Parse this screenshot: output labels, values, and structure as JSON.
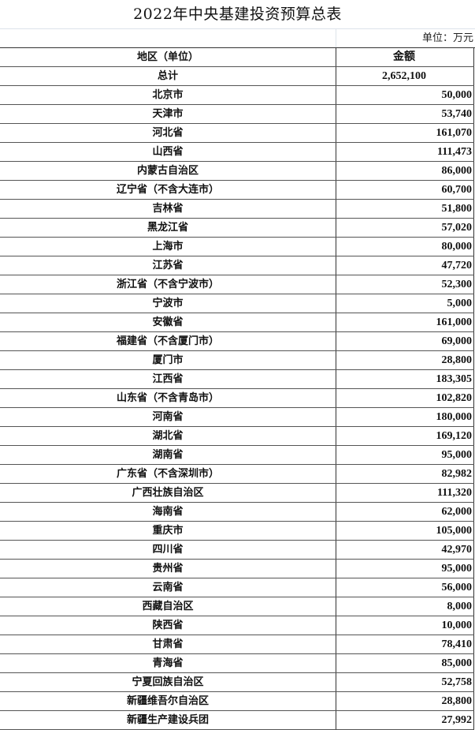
{
  "title": "2022年中央基建投资预算总表",
  "unit": "单位：万元",
  "header": {
    "region": "地区（单位）",
    "amount": "金额"
  },
  "total": {
    "label": "总计",
    "amount": "2,652,100"
  },
  "rows": [
    {
      "region": "北京市",
      "amount": "50,000"
    },
    {
      "region": "天津市",
      "amount": "53,740"
    },
    {
      "region": "河北省",
      "amount": "161,070"
    },
    {
      "region": "山西省",
      "amount": "111,473"
    },
    {
      "region": "内蒙古自治区",
      "amount": "86,000"
    },
    {
      "region": "辽宁省（不含大连市）",
      "amount": "60,700"
    },
    {
      "region": "吉林省",
      "amount": "51,800"
    },
    {
      "region": "黑龙江省",
      "amount": "57,020"
    },
    {
      "region": "上海市",
      "amount": "80,000"
    },
    {
      "region": "江苏省",
      "amount": "47,720"
    },
    {
      "region": "浙江省（不含宁波市）",
      "amount": "52,300"
    },
    {
      "region": "宁波市",
      "amount": "5,000"
    },
    {
      "region": "安徽省",
      "amount": "161,000"
    },
    {
      "region": "福建省（不含厦门市）",
      "amount": "69,000"
    },
    {
      "region": "厦门市",
      "amount": "28,800"
    },
    {
      "region": "江西省",
      "amount": "183,305"
    },
    {
      "region": "山东省（不含青岛市）",
      "amount": "102,820"
    },
    {
      "region": "河南省",
      "amount": "180,000"
    },
    {
      "region": "湖北省",
      "amount": "169,120"
    },
    {
      "region": "湖南省",
      "amount": "95,000"
    },
    {
      "region": "广东省（不含深圳市）",
      "amount": "82,982"
    },
    {
      "region": "广西壮族自治区",
      "amount": "111,320"
    },
    {
      "region": "海南省",
      "amount": "62,000"
    },
    {
      "region": "重庆市",
      "amount": "105,000"
    },
    {
      "region": "四川省",
      "amount": "42,970"
    },
    {
      "region": "贵州省",
      "amount": "95,000"
    },
    {
      "region": "云南省",
      "amount": "56,000"
    },
    {
      "region": "西藏自治区",
      "amount": "8,000"
    },
    {
      "region": "陕西省",
      "amount": "10,000"
    },
    {
      "region": "甘肃省",
      "amount": "78,410"
    },
    {
      "region": "青海省",
      "amount": "85,000"
    },
    {
      "region": "宁夏回族自治区",
      "amount": "52,758"
    },
    {
      "region": "新疆维吾尔自治区",
      "amount": "28,800"
    },
    {
      "region": "新疆生产建设兵团",
      "amount": "27,992"
    }
  ]
}
